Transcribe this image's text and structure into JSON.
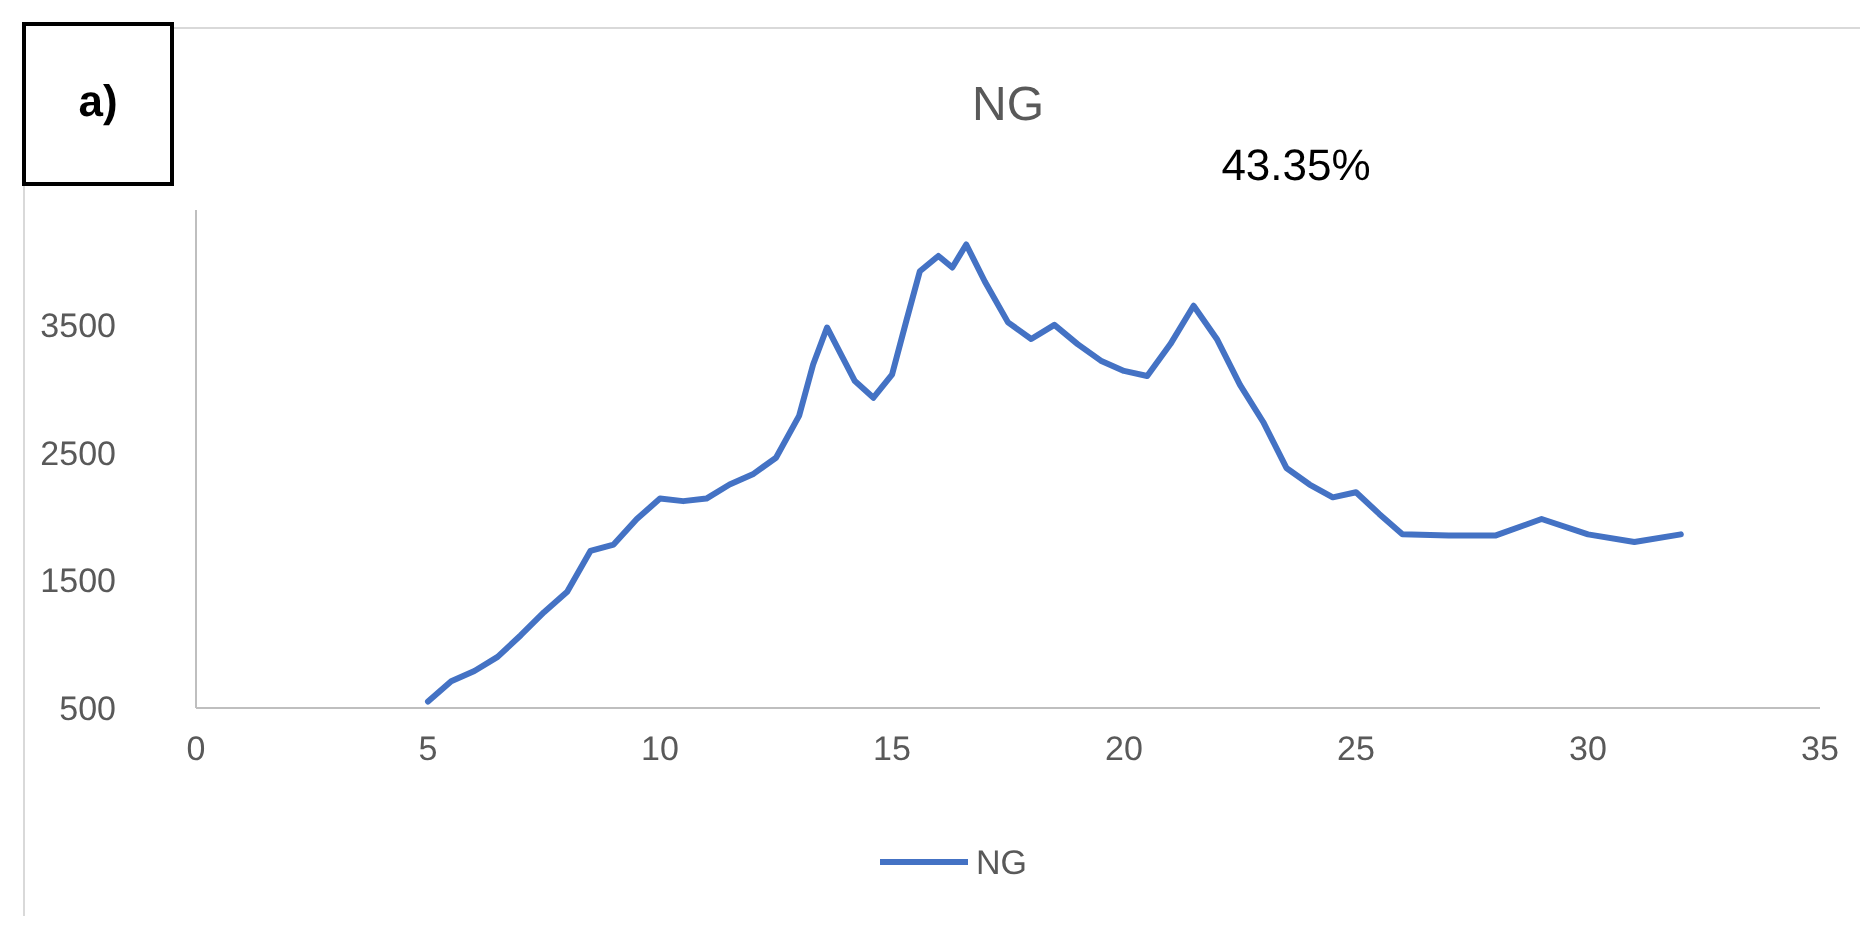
{
  "chart_data": {
    "type": "line",
    "title": "NG",
    "annotations": [
      "a)",
      "43.35%"
    ],
    "x": [
      5,
      5.5,
      6,
      6.5,
      7,
      7.5,
      8,
      8.5,
      9,
      9.5,
      10,
      10.5,
      11,
      11.5,
      12,
      12.5,
      13,
      13.3,
      13.6,
      13.9,
      14.2,
      14.6,
      15,
      15.3,
      15.6,
      16,
      16.3,
      16.6,
      17,
      17.5,
      18,
      18.5,
      19,
      19.5,
      20,
      20.5,
      21,
      21.5,
      22,
      22.5,
      23,
      23.5,
      24,
      24.5,
      25,
      25.5,
      26,
      27,
      28,
      29,
      30,
      31,
      32
    ],
    "series": [
      {
        "name": "NG",
        "color": "#4472c4",
        "values": [
          550,
          710,
          790,
          900,
          1070,
          1250,
          1410,
          1730,
          1780,
          1980,
          2140,
          2120,
          2140,
          2250,
          2330,
          2460,
          2790,
          3190,
          3480,
          3270,
          3060,
          2930,
          3110,
          3520,
          3920,
          4040,
          3950,
          4130,
          3840,
          3520,
          3390,
          3500,
          3350,
          3220,
          3140,
          3100,
          3350,
          3650,
          3390,
          3030,
          2740,
          2380,
          2250,
          2150,
          2190,
          2020,
          1860,
          1850,
          1850,
          1980,
          1860,
          1800,
          1860
        ]
      }
    ],
    "xlim": [
      0,
      35
    ],
    "xticks": [
      0,
      5,
      10,
      15,
      20,
      25,
      30,
      35
    ],
    "ylim": [
      500,
      4400
    ],
    "yticks": [
      500,
      1500,
      2500,
      3500
    ],
    "grid": false,
    "legend": "bottom",
    "marker": "none",
    "line_style": "solid"
  }
}
